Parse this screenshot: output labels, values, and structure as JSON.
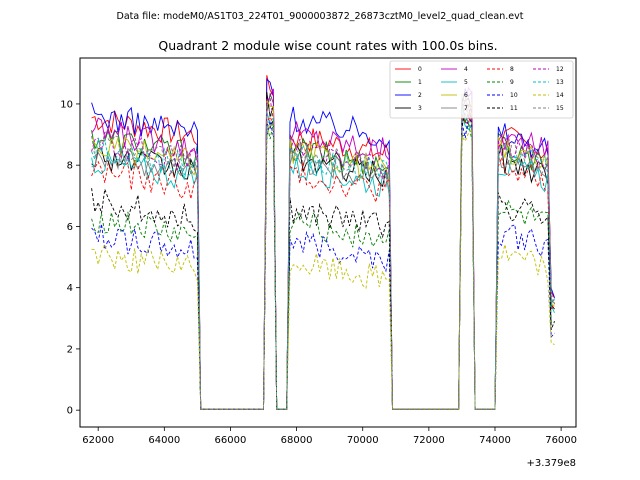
{
  "chart_data": {
    "type": "line",
    "suptitle": "Data file: modeM0/AS1T03_224T01_9000003872_26873cztM0_level2_quad_clean.evt",
    "title": "Quadrant 2 module wise count rates with 100.0s bins.",
    "xlabel": "",
    "ylabel": "",
    "x_offset_label": "+3.379e8",
    "xlim": [
      61450,
      76450
    ],
    "ylim": [
      -0.55,
      11.5
    ],
    "x_ticks": [
      62000,
      64000,
      66000,
      68000,
      70000,
      72000,
      74000,
      76000
    ],
    "x_tick_labels": [
      "62000",
      "64000",
      "66000",
      "68000",
      "70000",
      "72000",
      "74000",
      "76000"
    ],
    "y_ticks": [
      0,
      2,
      4,
      6,
      8,
      10
    ],
    "y_tick_labels": [
      "0",
      "2",
      "4",
      "6",
      "8",
      "10"
    ],
    "grid": false,
    "legend_position": "top-right",
    "segments": [
      {
        "x_start": 61800,
        "x_end": 65000,
        "gap_after_end": 65300
      },
      {
        "x_start": 67100,
        "x_end": 67300
      },
      {
        "x_start": 67800,
        "x_end": 70800
      },
      {
        "x_start": 73000,
        "x_end": 73300
      },
      {
        "x_start": 74100,
        "x_end": 75800
      }
    ],
    "series": [
      {
        "name": "0",
        "color": "#ff0000",
        "dashed": false,
        "levels": [
          9.2,
          10.1,
          8.6,
          9.2,
          8.6
        ]
      },
      {
        "name": "1",
        "color": "#008000",
        "dashed": false,
        "levels": [
          8.6,
          9.5,
          8.2,
          9.4,
          8.3
        ]
      },
      {
        "name": "2",
        "color": "#0000ff",
        "dashed": false,
        "levels": [
          9.3,
          10.3,
          9.2,
          9.8,
          8.7
        ]
      },
      {
        "name": "3",
        "color": "#000000",
        "dashed": false,
        "levels": [
          8.0,
          9.6,
          7.9,
          9.6,
          7.9
        ]
      },
      {
        "name": "4",
        "color": "#bf00bf",
        "dashed": false,
        "levels": [
          8.8,
          9.8,
          8.7,
          9.8,
          8.6
        ]
      },
      {
        "name": "5",
        "color": "#00bfbf",
        "dashed": false,
        "levels": [
          7.8,
          9.3,
          7.6,
          9.2,
          7.7
        ]
      },
      {
        "name": "6",
        "color": "#bfbf00",
        "dashed": false,
        "levels": [
          8.3,
          9.4,
          8.1,
          9.5,
          8.2
        ]
      },
      {
        "name": "7",
        "color": "#808080",
        "dashed": false,
        "levels": [
          8.0,
          9.3,
          7.8,
          9.1,
          7.8
        ]
      },
      {
        "name": "8",
        "color": "#ff0000",
        "dashed": true,
        "levels": [
          7.5,
          9.0,
          7.4,
          9.0,
          7.6
        ]
      },
      {
        "name": "9",
        "color": "#008000",
        "dashed": true,
        "levels": [
          5.9,
          8.7,
          5.8,
          8.8,
          6.2
        ]
      },
      {
        "name": "10",
        "color": "#0000ff",
        "dashed": true,
        "levels": [
          5.4,
          8.8,
          5.2,
          8.9,
          5.5
        ]
      },
      {
        "name": "11",
        "color": "#000000",
        "dashed": true,
        "levels": [
          6.5,
          9.0,
          6.2,
          9.2,
          6.4
        ]
      },
      {
        "name": "12",
        "color": "#bf00bf",
        "dashed": true,
        "levels": [
          8.4,
          9.5,
          8.2,
          9.5,
          8.3
        ]
      },
      {
        "name": "13",
        "color": "#00bfbf",
        "dashed": true,
        "levels": [
          8.2,
          9.2,
          8.0,
          9.2,
          8.1
        ]
      },
      {
        "name": "14",
        "color": "#bfbf00",
        "dashed": true,
        "levels": [
          4.8,
          8.6,
          4.5,
          8.7,
          4.8
        ]
      },
      {
        "name": "15",
        "color": "#808080",
        "dashed": true,
        "levels": [
          8.3,
          9.4,
          8.1,
          9.4,
          8.2
        ]
      }
    ]
  }
}
